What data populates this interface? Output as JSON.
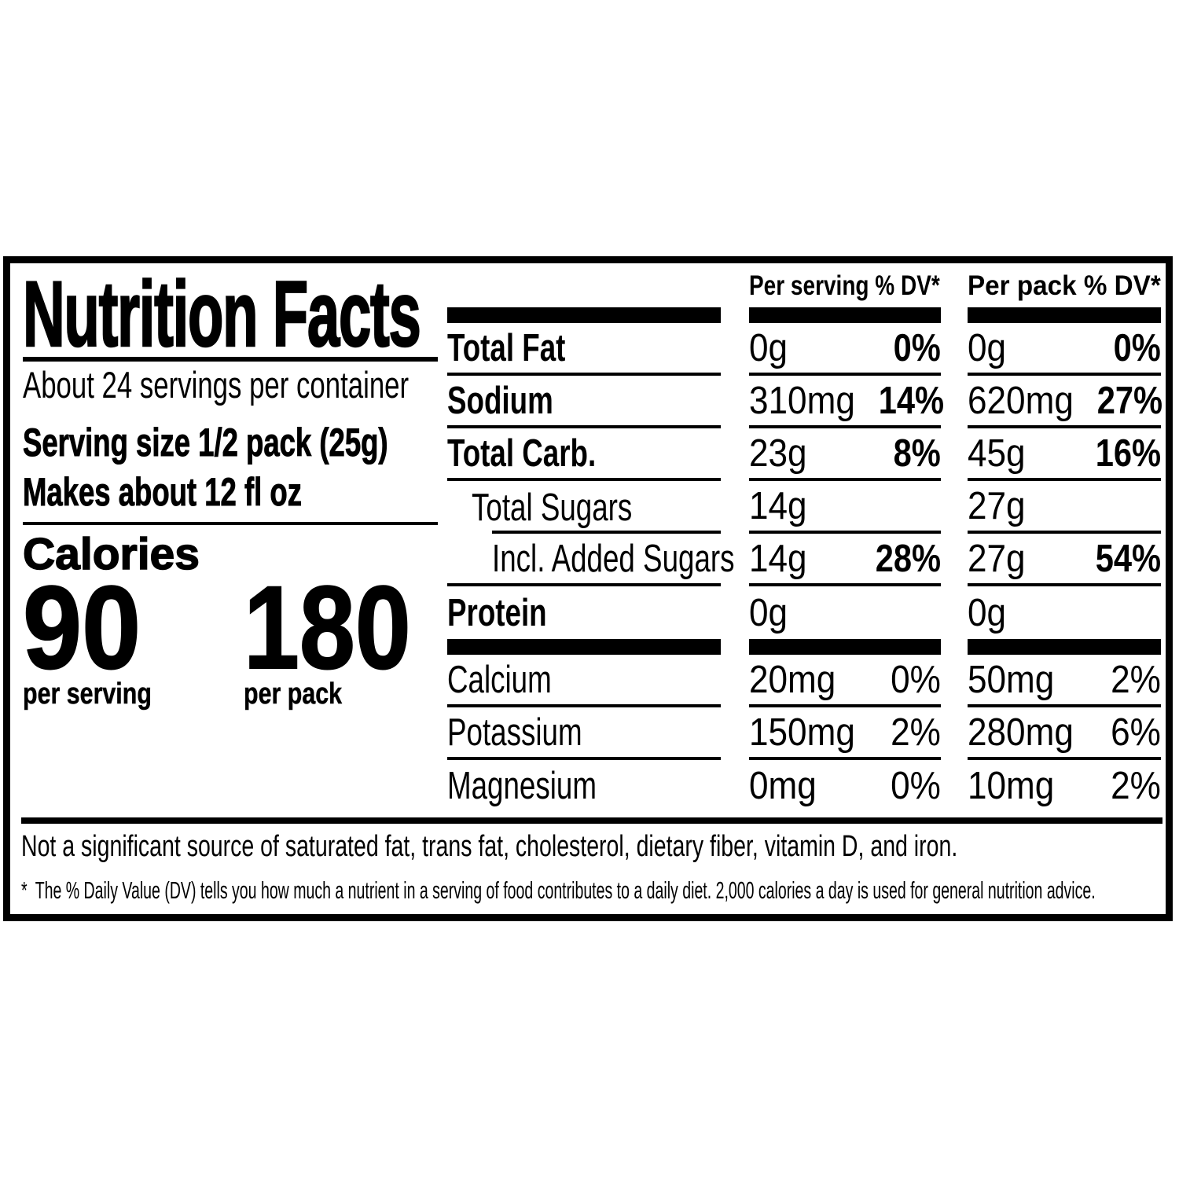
{
  "label": {
    "title": "Nutrition Facts",
    "servings_per_container": "About 24 servings per container",
    "serving_size": "Serving size 1/2 pack (25g)",
    "makes": "Makes about 12 fl oz",
    "calories": {
      "heading": "Calories",
      "per_serving": {
        "value": "90",
        "caption": "per serving"
      },
      "per_pack": {
        "value": "180",
        "caption": "per pack"
      }
    },
    "columns": {
      "serving": "Per serving % DV*",
      "pack": "Per pack % DV*"
    },
    "rows": [
      {
        "name": "Total Fat",
        "serving_amount": "0g",
        "serving_dv": "0%",
        "pack_amount": "0g",
        "pack_dv": "0%"
      },
      {
        "name": "Sodium",
        "serving_amount": "310mg",
        "serving_dv": "14%",
        "pack_amount": "620mg",
        "pack_dv": "27%"
      },
      {
        "name": "Total Carb.",
        "serving_amount": "23g",
        "serving_dv": "8%",
        "pack_amount": "45g",
        "pack_dv": "16%"
      },
      {
        "name": "Total Sugars",
        "serving_amount": "14g",
        "serving_dv": "",
        "pack_amount": "27g",
        "pack_dv": ""
      },
      {
        "name": "Incl. Added Sugars",
        "serving_amount": "14g",
        "serving_dv": "28%",
        "pack_amount": "27g",
        "pack_dv": "54%"
      },
      {
        "name": "Protein",
        "serving_amount": "0g",
        "serving_dv": "",
        "pack_amount": "0g",
        "pack_dv": ""
      },
      {
        "name": "Calcium",
        "serving_amount": "20mg",
        "serving_dv": "0%",
        "pack_amount": "50mg",
        "pack_dv": "2%"
      },
      {
        "name": "Potassium",
        "serving_amount": "150mg",
        "serving_dv": "2%",
        "pack_amount": "280mg",
        "pack_dv": "6%"
      },
      {
        "name": "Magnesium",
        "serving_amount": "0mg",
        "serving_dv": "0%",
        "pack_amount": "10mg",
        "pack_dv": "2%"
      }
    ],
    "footnotes": {
      "not_significant": "Not a significant source of saturated fat, trans fat, cholesterol, dietary fiber, vitamin D, and iron.",
      "daily_value_marker": "*",
      "daily_value": "The % Daily Value (DV) tells you how much a nutrient in a serving of food contributes to a daily diet. 2,000 calories a day is used for general nutrition advice."
    },
    "colors": {
      "ink": "#000000",
      "paper": "#ffffff"
    }
  }
}
